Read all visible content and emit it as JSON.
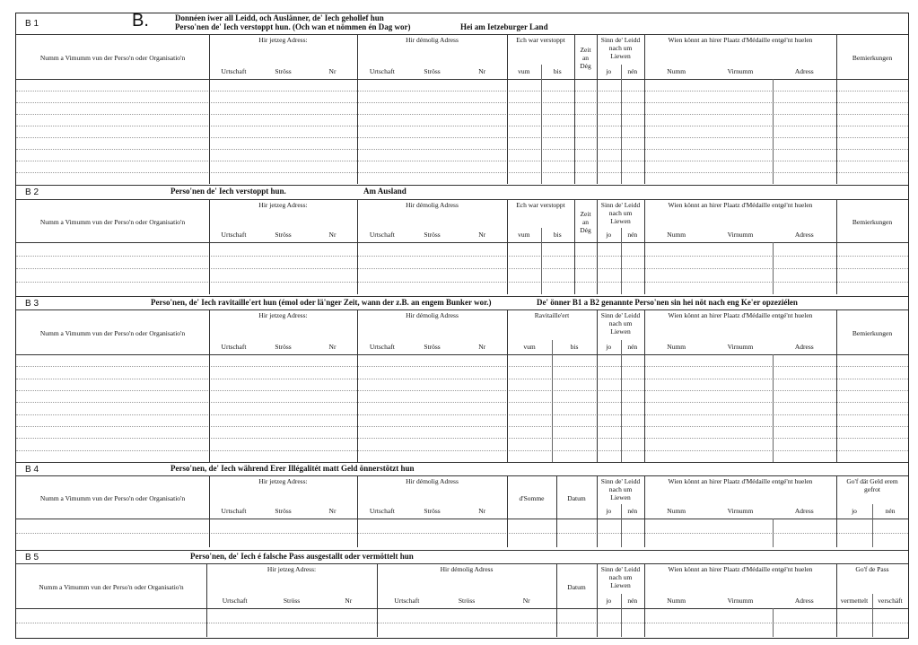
{
  "letter": "B.",
  "sections": [
    {
      "code": "B 1",
      "title": [
        "Donnéen iwer all Leidd, och Auslänner, de' Iech gehollef hun",
        "Perso'nen de' Iech verstoppt hun. (Och wan et nömmen én Dag wor)"
      ],
      "note": "Hei am Ietzeburger Land",
      "columns": [
        {
          "label": "Numm a Vimumm vun der Perso'n oder Organisatio'n"
        },
        {
          "label": "Hir jetzeg Adress:",
          "sub": [
            "Urtschaft",
            "Ströss",
            "Nr"
          ]
        },
        {
          "label": "Hir démolig Adress",
          "sub": [
            "Urtschaft",
            "Ströss",
            "Nr"
          ]
        },
        {
          "label": "Ech war verstoppt",
          "sub": [
            "vum",
            "bis"
          ]
        },
        {
          "label": "Zeit an Dég"
        },
        {
          "label": "Sinn de' Leidd nach um Liewen",
          "sub": [
            "jo",
            "nén"
          ]
        },
        {
          "label": "Wien könnt an hirer Plaatz d'Médaille entgé'nt huelen",
          "sub": [
            "Numm",
            "Virnumm",
            "Adress"
          ]
        },
        {
          "label": "Bemierkungen"
        }
      ]
    },
    {
      "code": "B 2",
      "title": [
        "Perso'nen de' Iech verstoppt hun."
      ],
      "note": "Am Ausland",
      "columns": [
        {
          "label": "Numm a Vimumm vun der Perso'n oder Organisatio'n"
        },
        {
          "label": "Hir jetzeg Adress:",
          "sub": [
            "Urtschaft",
            "Ströss",
            "Nr"
          ]
        },
        {
          "label": "Hir démolig Adress",
          "sub": [
            "Urtschaft",
            "Ströss",
            "Nr"
          ]
        },
        {
          "label": "Ech war verstoppt",
          "sub": [
            "vum",
            "bis"
          ]
        },
        {
          "label": "Zeit an Dég"
        },
        {
          "label": "Sinn de' Leidd nach um Liewen",
          "sub": [
            "jo",
            "nén"
          ]
        },
        {
          "label": "Wien könnt an hirer Plaatz d'Médaille entgé'nt huelen",
          "sub": [
            "Numm",
            "Virnumm",
            "Adress"
          ]
        },
        {
          "label": "Bemierkungen"
        }
      ]
    },
    {
      "code": "B 3",
      "title": [
        "Perso'nen, de' Iech ravitaille'ert hun (émol oder lä'nger Zeit, wann der z.B. an engem Bunker wor.)"
      ],
      "note": "De' önner B1 a B2 genannte Perso'nen sin hei nöt nach eng Ke'er opzeziélen",
      "columns": [
        {
          "label": "Numm a Vimumm vun der Perso'n oder Organisatio'n"
        },
        {
          "label": "Hir jetzeg Adress:",
          "sub": [
            "Urtschaft",
            "Ströss",
            "Nr"
          ]
        },
        {
          "label": "Hir démolig Adress",
          "sub": [
            "Urtschaft",
            "Ströss",
            "Nr"
          ]
        },
        {
          "label": "Ravitaille'ert",
          "sub": [
            "vum",
            "bis"
          ]
        },
        {
          "label": "Sinn de' Leidd nach um Liewen",
          "sub": [
            "jo",
            "nén"
          ]
        },
        {
          "label": "Wien könnt an hirer Plaatz d'Médaille entgé'nt huelen",
          "sub": [
            "Numm",
            "Virnumm",
            "Adress"
          ]
        },
        {
          "label": "Bemierkungen"
        }
      ]
    },
    {
      "code": "B 4",
      "title": [
        "Perso'nen, de' Iech während Erer Illégalitét matt Geld önnerstötzt hun"
      ],
      "columns": [
        {
          "label": "Numm a Vimumm vun der Perso'n oder Organisatio'n"
        },
        {
          "label": "Hir jetzeg Adress:",
          "sub": [
            "Urtschaft",
            "Ströss",
            "Nr"
          ]
        },
        {
          "label": "Hir démolig Adress",
          "sub": [
            "Urtschaft",
            "Ströss",
            "Nr"
          ]
        },
        {
          "label": "d'Somme"
        },
        {
          "label": "Datum"
        },
        {
          "label": "Sinn de' Leidd nach um Liewen",
          "sub": [
            "jo",
            "nén"
          ]
        },
        {
          "label": "Wien könnt an hirer Plaatz d'Médaille entgé'nt huelen",
          "sub": [
            "Numm",
            "Virnumm",
            "Adress"
          ]
        },
        {
          "label": "Go'f dät Geld erem gefrot",
          "sub": [
            "jo",
            "nén"
          ]
        }
      ]
    },
    {
      "code": "B 5",
      "title": [
        "Perso'nen, de' Iech é falsche Pass ausgestallt oder vermöttelt hun"
      ],
      "columns": [
        {
          "label": "Numm a Vimumm vun der Perso'n oder Organisatio'n"
        },
        {
          "label": "Hir jetzeg Adress:",
          "sub": [
            "Urtschaft",
            "Ströss",
            "Nr"
          ]
        },
        {
          "label": "Hir démolig Adress",
          "sub": [
            "Urtschaft",
            "Ströss",
            "Nr"
          ]
        },
        {
          "label": "Datum"
        },
        {
          "label": "Sinn de' Leidd nach um Liewen",
          "sub": [
            "jo",
            "nén"
          ]
        },
        {
          "label": "Wien könnt an hirer Plaatz d'Médaille entgé'nt huelen",
          "sub": [
            "Numm",
            "Virnumm",
            "Adress"
          ]
        },
        {
          "label": "Go'f de Pass",
          "sub": [
            "vermettelt",
            "verschäft"
          ]
        }
      ]
    }
  ]
}
